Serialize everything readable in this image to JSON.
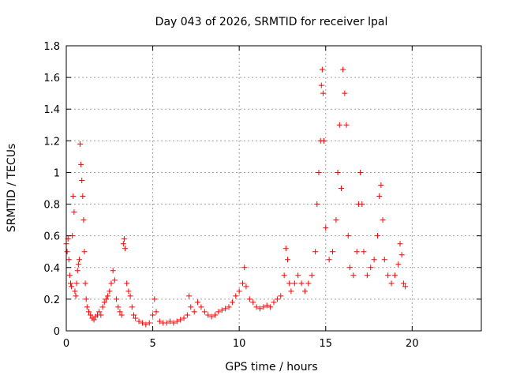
{
  "chart_data": {
    "type": "scatter",
    "title": "Day 043 of 2026, SRMTID for receiver lpal",
    "xlabel": "GPS time / hours",
    "ylabel": "SRMTID / TECUs",
    "xlim": [
      0,
      24
    ],
    "ylim": [
      0,
      1.8
    ],
    "xticks": [
      0,
      5,
      10,
      15,
      20
    ],
    "yticks": [
      0,
      0.2,
      0.4,
      0.6,
      0.8,
      1,
      1.2,
      1.4,
      1.6,
      1.8
    ],
    "xtick_labels": [
      "0",
      "5",
      "10",
      "15",
      "20"
    ],
    "ytick_labels": [
      "0",
      "0.2",
      "0.4",
      "0.6",
      "0.8",
      "1",
      "1.2",
      "1.4",
      "1.6",
      "1.8"
    ],
    "grid": true,
    "marker": "+",
    "color": "#ff0000",
    "series": [
      {
        "name": "SRMTID",
        "points": [
          [
            0.0,
            0.55
          ],
          [
            0.05,
            0.5
          ],
          [
            0.1,
            0.58
          ],
          [
            0.15,
            0.45
          ],
          [
            0.2,
            0.35
          ],
          [
            0.25,
            0.3
          ],
          [
            0.3,
            0.28
          ],
          [
            0.35,
            0.6
          ],
          [
            0.4,
            0.85
          ],
          [
            0.45,
            0.75
          ],
          [
            0.5,
            0.25
          ],
          [
            0.55,
            0.22
          ],
          [
            0.6,
            0.3
          ],
          [
            0.65,
            0.38
          ],
          [
            0.7,
            0.42
          ],
          [
            0.75,
            0.45
          ],
          [
            0.8,
            1.18
          ],
          [
            0.85,
            1.05
          ],
          [
            0.9,
            0.95
          ],
          [
            0.95,
            0.85
          ],
          [
            1.0,
            0.7
          ],
          [
            1.05,
            0.5
          ],
          [
            1.1,
            0.3
          ],
          [
            1.15,
            0.2
          ],
          [
            1.2,
            0.15
          ],
          [
            1.3,
            0.12
          ],
          [
            1.4,
            0.1
          ],
          [
            1.5,
            0.08
          ],
          [
            1.6,
            0.07
          ],
          [
            1.7,
            0.09
          ],
          [
            1.8,
            0.1
          ],
          [
            1.9,
            0.12
          ],
          [
            2.0,
            0.1
          ],
          [
            2.1,
            0.15
          ],
          [
            2.2,
            0.18
          ],
          [
            2.3,
            0.2
          ],
          [
            2.4,
            0.22
          ],
          [
            2.5,
            0.25
          ],
          [
            2.6,
            0.3
          ],
          [
            2.7,
            0.38
          ],
          [
            2.8,
            0.32
          ],
          [
            2.9,
            0.2
          ],
          [
            3.0,
            0.15
          ],
          [
            3.1,
            0.12
          ],
          [
            3.2,
            0.1
          ],
          [
            3.3,
            0.55
          ],
          [
            3.35,
            0.58
          ],
          [
            3.4,
            0.52
          ],
          [
            3.5,
            0.3
          ],
          [
            3.6,
            0.25
          ],
          [
            3.7,
            0.22
          ],
          [
            3.8,
            0.15
          ],
          [
            3.9,
            0.1
          ],
          [
            4.0,
            0.08
          ],
          [
            4.2,
            0.06
          ],
          [
            4.4,
            0.05
          ],
          [
            4.6,
            0.04
          ],
          [
            4.8,
            0.05
          ],
          [
            5.0,
            0.1
          ],
          [
            5.1,
            0.2
          ],
          [
            5.2,
            0.12
          ],
          [
            5.4,
            0.06
          ],
          [
            5.6,
            0.05
          ],
          [
            5.8,
            0.05
          ],
          [
            6.0,
            0.06
          ],
          [
            6.2,
            0.05
          ],
          [
            6.4,
            0.06
          ],
          [
            6.6,
            0.07
          ],
          [
            6.8,
            0.08
          ],
          [
            7.0,
            0.1
          ],
          [
            7.1,
            0.22
          ],
          [
            7.2,
            0.15
          ],
          [
            7.4,
            0.12
          ],
          [
            7.6,
            0.18
          ],
          [
            7.8,
            0.15
          ],
          [
            8.0,
            0.12
          ],
          [
            8.2,
            0.1
          ],
          [
            8.4,
            0.09
          ],
          [
            8.6,
            0.1
          ],
          [
            8.8,
            0.12
          ],
          [
            9.0,
            0.13
          ],
          [
            9.2,
            0.14
          ],
          [
            9.4,
            0.15
          ],
          [
            9.6,
            0.18
          ],
          [
            9.8,
            0.22
          ],
          [
            10.0,
            0.25
          ],
          [
            10.2,
            0.3
          ],
          [
            10.3,
            0.4
          ],
          [
            10.4,
            0.28
          ],
          [
            10.6,
            0.2
          ],
          [
            10.8,
            0.18
          ],
          [
            11.0,
            0.15
          ],
          [
            11.2,
            0.14
          ],
          [
            11.4,
            0.15
          ],
          [
            11.6,
            0.16
          ],
          [
            11.8,
            0.15
          ],
          [
            12.0,
            0.18
          ],
          [
            12.2,
            0.2
          ],
          [
            12.4,
            0.22
          ],
          [
            12.6,
            0.35
          ],
          [
            12.7,
            0.52
          ],
          [
            12.8,
            0.45
          ],
          [
            12.9,
            0.3
          ],
          [
            13.0,
            0.25
          ],
          [
            13.2,
            0.3
          ],
          [
            13.4,
            0.35
          ],
          [
            13.6,
            0.3
          ],
          [
            13.8,
            0.25
          ],
          [
            14.0,
            0.3
          ],
          [
            14.2,
            0.35
          ],
          [
            14.4,
            0.5
          ],
          [
            14.5,
            0.8
          ],
          [
            14.6,
            1.0
          ],
          [
            14.7,
            1.2
          ],
          [
            14.75,
            1.55
          ],
          [
            14.8,
            1.65
          ],
          [
            14.85,
            1.5
          ],
          [
            14.9,
            1.2
          ],
          [
            15.0,
            0.65
          ],
          [
            15.2,
            0.45
          ],
          [
            15.4,
            0.5
          ],
          [
            15.6,
            0.7
          ],
          [
            15.7,
            1.0
          ],
          [
            15.8,
            1.3
          ],
          [
            15.9,
            0.9
          ],
          [
            16.0,
            1.65
          ],
          [
            16.1,
            1.5
          ],
          [
            16.2,
            1.3
          ],
          [
            16.3,
            0.6
          ],
          [
            16.4,
            0.4
          ],
          [
            16.6,
            0.35
          ],
          [
            16.8,
            0.5
          ],
          [
            16.9,
            0.8
          ],
          [
            17.0,
            1.0
          ],
          [
            17.1,
            0.8
          ],
          [
            17.2,
            0.5
          ],
          [
            17.4,
            0.35
          ],
          [
            17.6,
            0.4
          ],
          [
            17.8,
            0.45
          ],
          [
            18.0,
            0.6
          ],
          [
            18.1,
            0.85
          ],
          [
            18.2,
            0.92
          ],
          [
            18.3,
            0.7
          ],
          [
            18.4,
            0.45
          ],
          [
            18.6,
            0.35
          ],
          [
            18.8,
            0.3
          ],
          [
            19.0,
            0.35
          ],
          [
            19.2,
            0.42
          ],
          [
            19.3,
            0.55
          ],
          [
            19.4,
            0.48
          ],
          [
            19.5,
            0.3
          ],
          [
            19.6,
            0.28
          ]
        ]
      }
    ]
  }
}
